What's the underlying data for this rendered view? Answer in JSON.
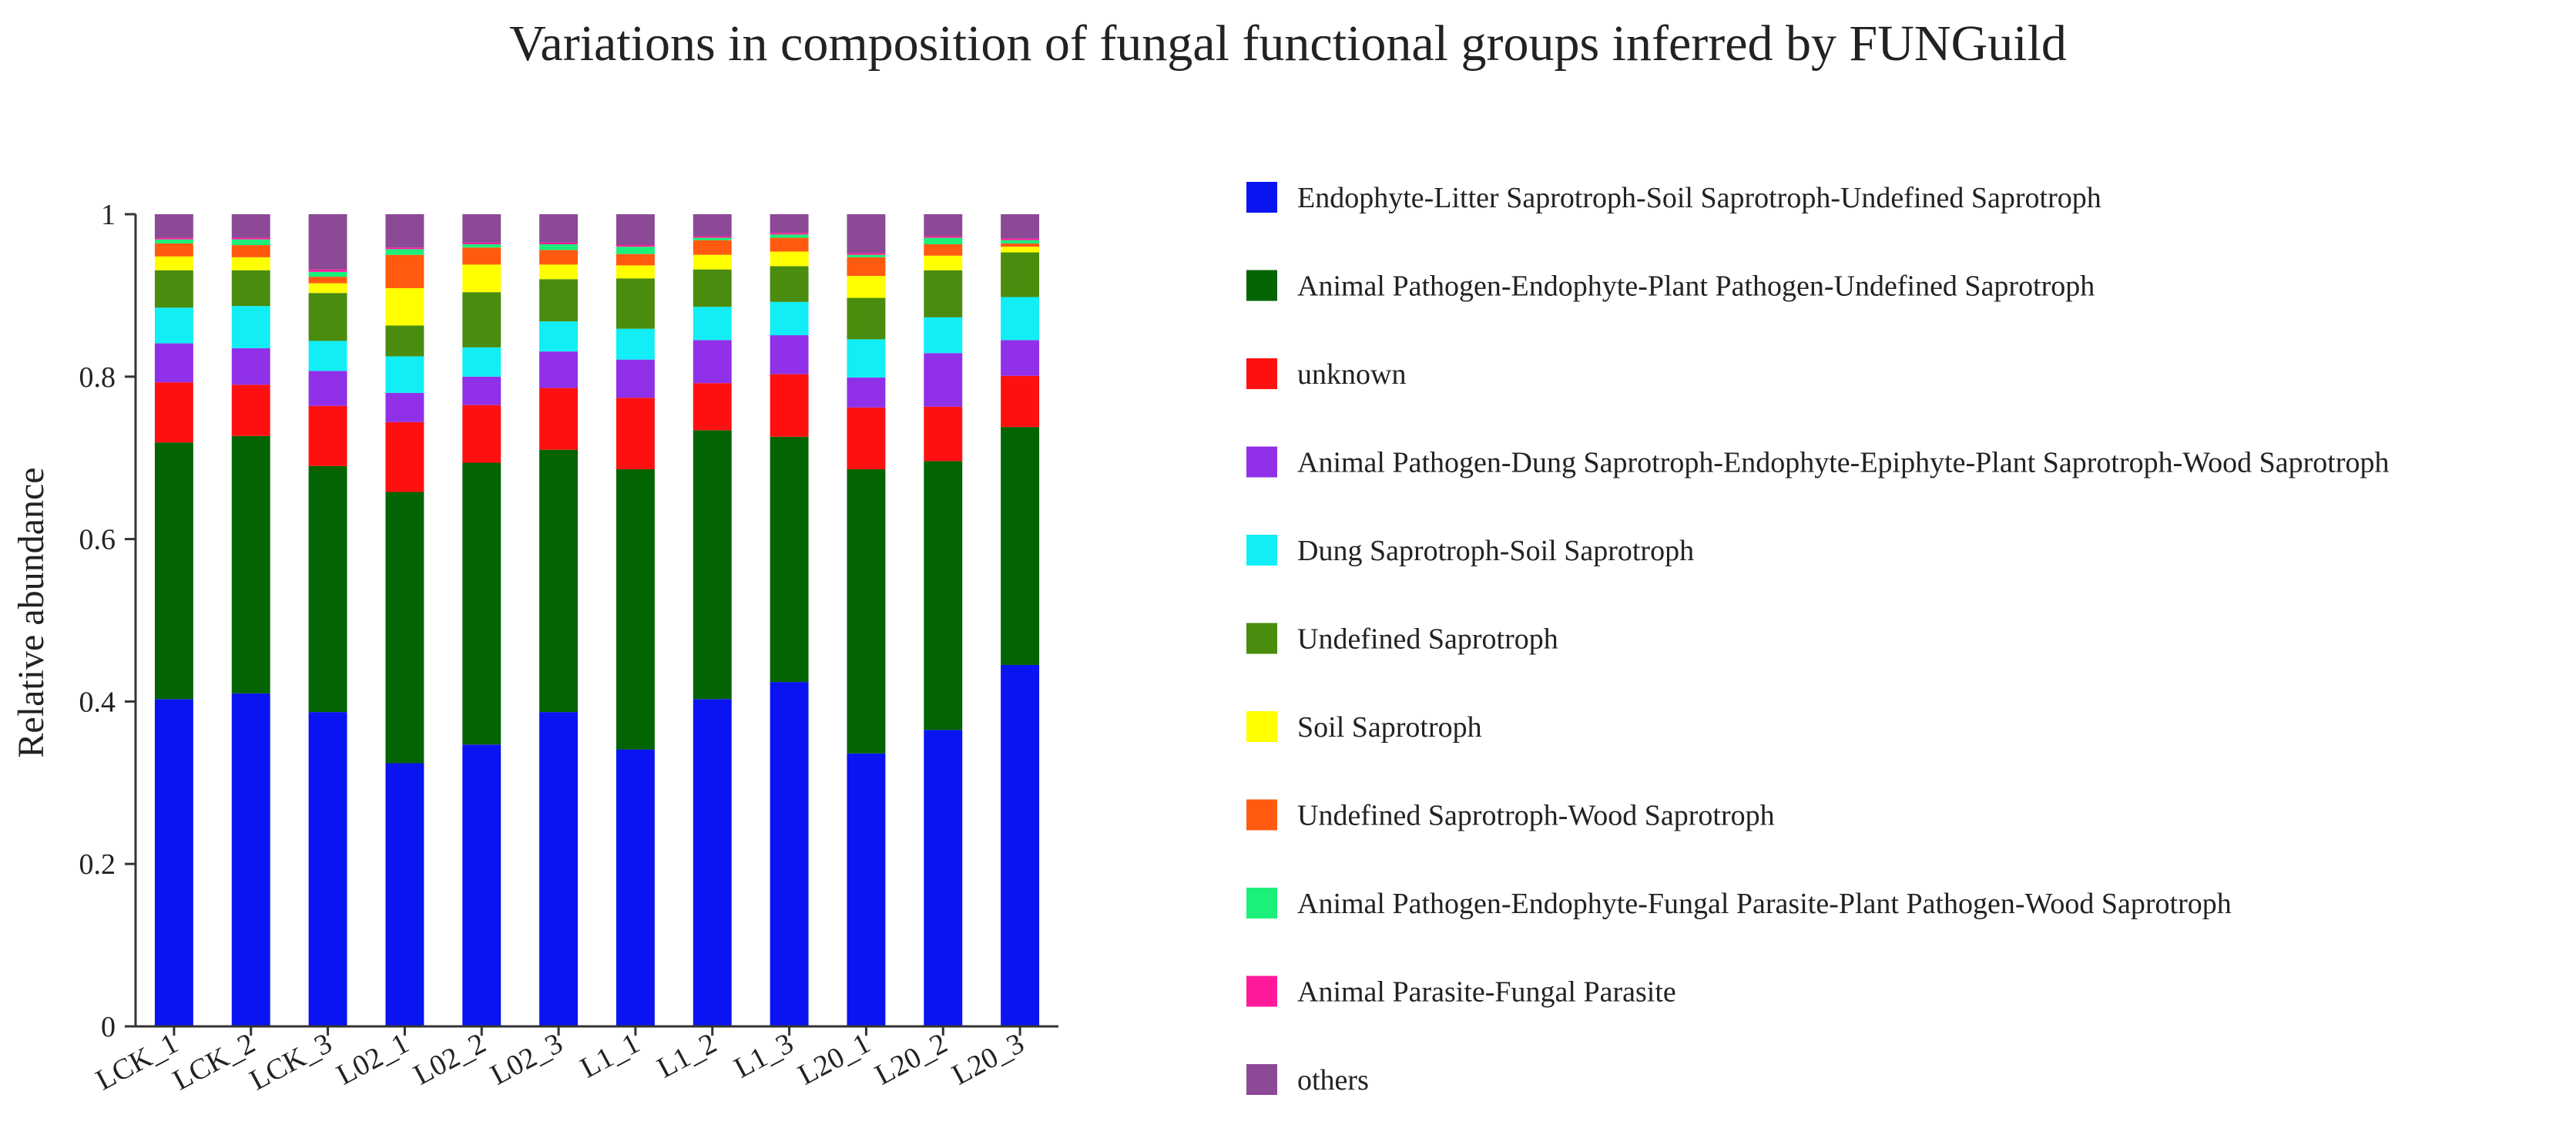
{
  "chart_data": {
    "type": "bar",
    "stacked": true,
    "title": "Variations in composition of fungal functional groups inferred by FUNGuild",
    "xlabel": "",
    "ylabel": "Relative abundance",
    "ylim": [
      0,
      1
    ],
    "yticks": [
      "0",
      "0.2",
      "0.4",
      "0.6",
      "0.8",
      "1"
    ],
    "legend_position": "right",
    "categories": [
      "LCK_1",
      "LCK_2",
      "LCK_3",
      "L02_1",
      "L02_2",
      "L02_3",
      "L1_1",
      "L1_2",
      "L1_3",
      "L20_1",
      "L20_2",
      "L20_3"
    ],
    "series": [
      {
        "name": "Endophyte-Litter Saprotroph-Soil Saprotroph-Undefined Saprotroph",
        "color": "#0a14f0",
        "values": [
          0.403,
          0.41,
          0.387,
          0.324,
          0.347,
          0.387,
          0.341,
          0.403,
          0.424,
          0.336,
          0.365,
          0.445
        ]
      },
      {
        "name": "Animal Pathogen-Endophyte-Plant Pathogen-Undefined Saprotroph",
        "color": "#036403",
        "values": [
          0.316,
          0.317,
          0.303,
          0.334,
          0.347,
          0.323,
          0.345,
          0.331,
          0.302,
          0.35,
          0.331,
          0.293
        ]
      },
      {
        "name": "unknown",
        "color": "#ff1010",
        "values": [
          0.074,
          0.063,
          0.074,
          0.086,
          0.071,
          0.076,
          0.088,
          0.058,
          0.077,
          0.076,
          0.067,
          0.063
        ]
      },
      {
        "name": "Animal Pathogen-Dung Saprotroph-Endophyte-Epiphyte-Plant Saprotroph-Wood Saprotroph",
        "color": "#9030e8",
        "values": [
          0.048,
          0.045,
          0.043,
          0.036,
          0.035,
          0.045,
          0.047,
          0.053,
          0.048,
          0.037,
          0.066,
          0.044
        ]
      },
      {
        "name": "Dung Saprotroph-Soil Saprotroph",
        "color": "#12eef5",
        "values": [
          0.044,
          0.052,
          0.037,
          0.045,
          0.036,
          0.037,
          0.038,
          0.041,
          0.041,
          0.047,
          0.044,
          0.053
        ]
      },
      {
        "name": "Undefined Saprotroph",
        "color": "#4a8c0e",
        "values": [
          0.046,
          0.044,
          0.059,
          0.038,
          0.068,
          0.052,
          0.062,
          0.046,
          0.044,
          0.051,
          0.058,
          0.055
        ]
      },
      {
        "name": "Soil Saprotroph",
        "color": "#ffff00",
        "values": [
          0.017,
          0.016,
          0.012,
          0.046,
          0.034,
          0.018,
          0.016,
          0.018,
          0.018,
          0.027,
          0.018,
          0.007
        ]
      },
      {
        "name": "Undefined Saprotroph-Wood Saprotroph",
        "color": "#ff5a10",
        "values": [
          0.016,
          0.015,
          0.008,
          0.041,
          0.021,
          0.018,
          0.014,
          0.018,
          0.017,
          0.023,
          0.014,
          0.004
        ]
      },
      {
        "name": "Animal Pathogen-Endophyte-Fungal Parasite-Plant Pathogen-Wood Saprotroph",
        "color": "#1af07a",
        "values": [
          0.005,
          0.007,
          0.006,
          0.007,
          0.004,
          0.007,
          0.009,
          0.003,
          0.004,
          0.003,
          0.008,
          0.004
        ]
      },
      {
        "name": "Animal Parasite-Fungal Parasite",
        "color": "#ff1a9c",
        "values": [
          0.002,
          0.002,
          0.003,
          0.002,
          0.002,
          0.002,
          0.002,
          0.002,
          0.002,
          0.002,
          0.002,
          0.002
        ]
      },
      {
        "name": "others",
        "color": "#8c4a96",
        "values": [
          0.029,
          0.029,
          0.068,
          0.041,
          0.035,
          0.035,
          0.038,
          0.027,
          0.023,
          0.048,
          0.027,
          0.03
        ]
      }
    ]
  }
}
